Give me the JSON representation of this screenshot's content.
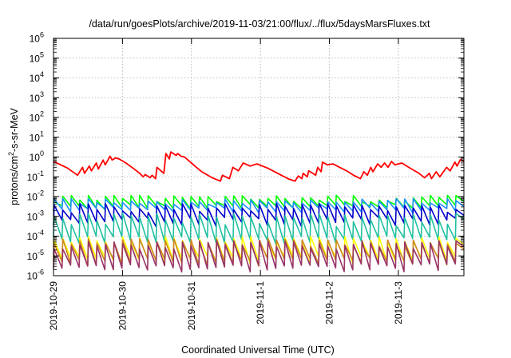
{
  "chart_data": {
    "type": "line",
    "title": "/data/run/goesPlots/archive/2019-11-03/21:00/flux/../flux/5daysMarsFluxes.txt",
    "xlabel": "Coordinated Universal Time (UTC)",
    "ylabel_parts": {
      "base": "protons/cm",
      "sup": "2",
      "rest": "-s-sr-MeV"
    },
    "x_tick_labels": [
      "2019-10-29",
      "2019-10-30",
      "2019-10-31",
      "2019-11-1",
      "2019-11-2",
      "2019-11-3"
    ],
    "x_tick_values": [
      0,
      1,
      2,
      3,
      4,
      5
    ],
    "xlim": [
      0,
      5.95
    ],
    "y_scale": "log",
    "ylim": [
      1e-06,
      1000000.0
    ],
    "y_ticks": [
      {
        "base": "10",
        "exp": "6"
      },
      {
        "base": "10",
        "exp": "5"
      },
      {
        "base": "10",
        "exp": "4"
      },
      {
        "base": "10",
        "exp": "3"
      },
      {
        "base": "10",
        "exp": "2"
      },
      {
        "base": "10",
        "exp": "1"
      },
      {
        "base": "10",
        "exp": "0"
      },
      {
        "base": "10",
        "exp": "-1"
      },
      {
        "base": "10",
        "exp": "-2"
      },
      {
        "base": "10",
        "exp": "-3"
      },
      {
        "base": "10",
        "exp": "-4"
      },
      {
        "base": "10",
        "exp": "-5"
      },
      {
        "base": "10",
        "exp": "-6"
      }
    ],
    "y_tick_exponents": [
      6,
      5,
      4,
      3,
      2,
      1,
      0,
      -1,
      -2,
      -3,
      -4,
      -5,
      -6
    ],
    "grid": true,
    "series": [
      {
        "color": "#ff0000",
        "x": [
          0,
          0.2,
          0.35,
          0.42,
          0.45,
          0.52,
          0.55,
          0.62,
          0.65,
          0.72,
          0.75,
          0.82,
          0.85,
          0.9,
          0.95,
          1.05,
          1.15,
          1.25,
          1.3,
          1.33,
          1.4,
          1.43,
          1.48,
          1.5,
          1.6,
          1.63,
          1.68,
          1.7,
          1.78,
          1.8,
          1.85,
          1.9,
          1.95,
          2.05,
          2.15,
          2.3,
          2.42,
          2.45,
          2.55,
          2.6,
          2.68,
          2.75,
          2.85,
          2.95,
          3.1,
          3.25,
          3.4,
          3.5,
          3.55,
          3.6,
          3.62,
          3.68,
          3.7,
          3.8,
          3.83,
          3.88,
          3.9,
          3.97,
          4.05,
          4.15,
          4.25,
          4.35,
          4.45,
          4.5,
          4.55,
          4.6,
          4.63,
          4.7,
          4.75,
          4.8,
          4.85,
          4.9,
          4.95,
          5.05,
          5.15,
          5.3,
          5.38,
          5.45,
          5.48,
          5.55,
          5.6,
          5.7,
          5.75,
          5.82,
          5.85,
          5.9,
          5.95
        ],
        "y": [
          0.6,
          0.28,
          0.12,
          0.3,
          0.15,
          0.35,
          0.2,
          0.5,
          0.25,
          0.7,
          0.4,
          1.1,
          0.7,
          0.9,
          0.8,
          0.5,
          0.28,
          0.15,
          0.1,
          0.13,
          0.09,
          0.12,
          0.08,
          0.3,
          0.15,
          1.5,
          0.8,
          1.8,
          1.2,
          1.5,
          1.1,
          1.0,
          0.7,
          0.35,
          0.18,
          0.09,
          0.06,
          0.12,
          0.08,
          0.3,
          0.2,
          0.5,
          0.35,
          0.45,
          0.28,
          0.15,
          0.08,
          0.06,
          0.11,
          0.08,
          0.15,
          0.1,
          0.2,
          0.12,
          0.3,
          0.18,
          0.55,
          0.4,
          0.45,
          0.3,
          0.2,
          0.12,
          0.08,
          0.18,
          0.12,
          0.3,
          0.18,
          0.45,
          0.3,
          0.5,
          0.3,
          0.6,
          0.4,
          0.5,
          0.3,
          0.15,
          0.09,
          0.15,
          0.08,
          0.18,
          0.1,
          0.3,
          0.2,
          0.55,
          0.35,
          0.75,
          0.6
        ]
      },
      {
        "color": "#00ff00",
        "teeth": [
          0.005,
          0.012
        ],
        "low": [
          0.0022,
          0.004
        ],
        "seed": 1
      },
      {
        "color": "#1e90ff",
        "teeth": [
          0.004,
          0.008
        ],
        "low": [
          0.0015,
          0.0028
        ],
        "seed": 2
      },
      {
        "color": "#0000cc",
        "teeth": [
          0.0015,
          0.0045
        ],
        "low": [
          0.0003,
          0.0009
        ],
        "seed": 3
      },
      {
        "color": "#20c0a0",
        "teeth": [
          0.0003,
          0.0015
        ],
        "low": [
          4e-05,
          0.0001
        ],
        "seed": 4
      },
      {
        "color": "#ffff00",
        "teeth": [
          4e-05,
          0.0001
        ],
        "low": [
          4e-06,
          1e-05
        ],
        "seed": 5
      },
      {
        "color": "#cc8822",
        "teeth": [
          3e-05,
          8e-05
        ],
        "low": [
          3e-06,
          8e-06
        ],
        "seed": 6
      },
      {
        "color": "#993366",
        "teeth": [
          2e-05,
          6e-05
        ],
        "low": [
          1.5e-06,
          4e-06
        ],
        "seed": 7
      }
    ]
  }
}
